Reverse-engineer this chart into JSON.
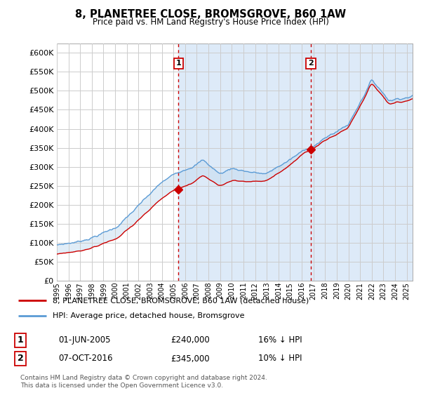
{
  "title": "8, PLANETREE CLOSE, BROMSGROVE, B60 1AW",
  "subtitle": "Price paid vs. HM Land Registry's House Price Index (HPI)",
  "yticks": [
    0,
    50000,
    100000,
    150000,
    200000,
    250000,
    300000,
    350000,
    400000,
    450000,
    500000,
    550000,
    600000
  ],
  "background_color": "#f0f5ff",
  "grid_color": "#d8d8d8",
  "chart_bg_before_sale1": "#ffffff",
  "chart_bg_after_sale1": "#e8f0fa",
  "sale1_date_num": 2005.42,
  "sale1_price": 240000,
  "sale1_label": "1",
  "sale2_date_num": 2016.77,
  "sale2_price": 345000,
  "sale2_label": "2",
  "legend_line1": "8, PLANETREE CLOSE, BROMSGROVE, B60 1AW (detached house)",
  "legend_line2": "HPI: Average price, detached house, Bromsgrove",
  "annotation1_text": "01-JUN-2005",
  "annotation1_price": "£240,000",
  "annotation1_hpi": "16% ↓ HPI",
  "annotation2_text": "07-OCT-2016",
  "annotation2_price": "£345,000",
  "annotation2_hpi": "10% ↓ HPI",
  "footer": "Contains HM Land Registry data © Crown copyright and database right 2024.\nThis data is licensed under the Open Government Licence v3.0.",
  "hpi_color": "#5b9bd5",
  "sale_color": "#cc0000",
  "dashed_line_color": "#cc0000",
  "fill_color": "#d6e8f7",
  "xmin": 1995,
  "xmax": 2025.5,
  "ymin": 0,
  "ymax": 625000
}
